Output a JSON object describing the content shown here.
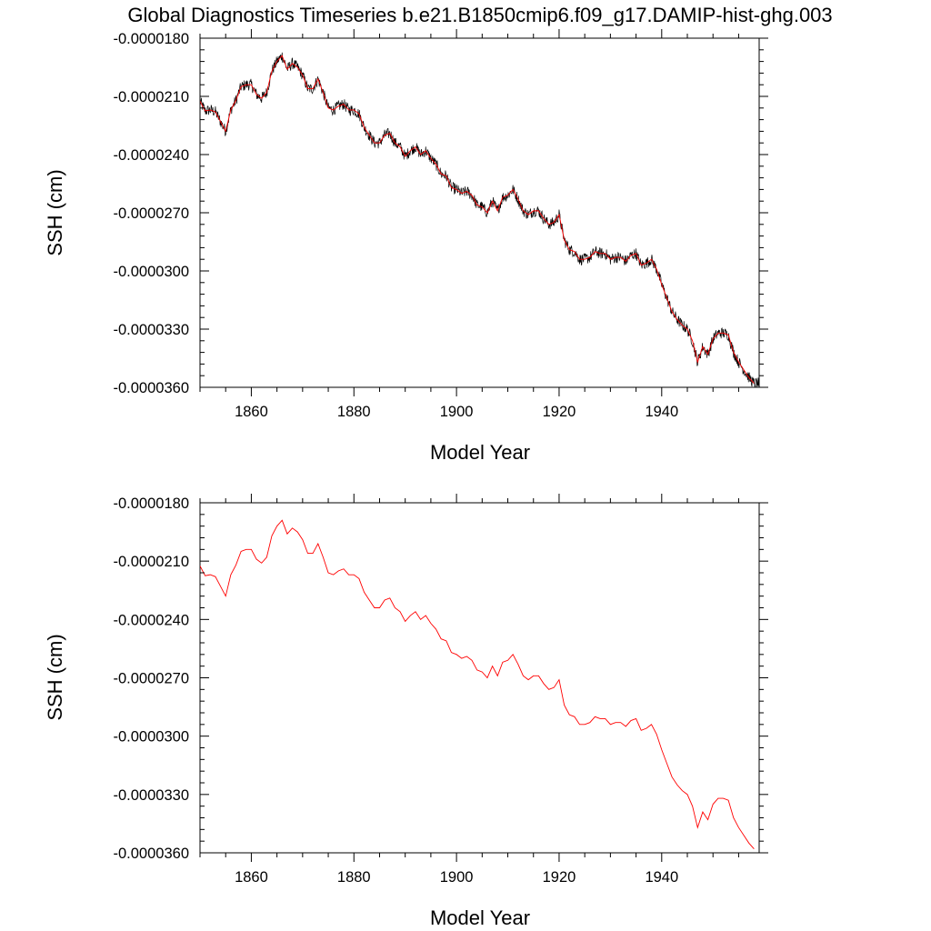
{
  "figure_title": "Global Diagnostics Timeseries b.e21.B1850cmip6.f09_g17.DAMIP-hist-ghg.003",
  "colors": {
    "monthly_line": "#000000",
    "annual_line": "#ff0000",
    "frame": "#000000"
  },
  "chart_data": [
    {
      "type": "line",
      "title": "",
      "xlabel": "Model Year",
      "ylabel": "SSH (cm)",
      "xlim": [
        1850,
        1959
      ],
      "ylim": [
        -3.6e-05,
        -1.8e-05
      ],
      "xticks": [
        1860,
        1880,
        1900,
        1920,
        1940
      ],
      "xtick_labels": [
        "1860",
        "1880",
        "1900",
        "1920",
        "1940"
      ],
      "yticks": [
        -1.8e-05,
        -2.1e-05,
        -2.4e-05,
        -2.7e-05,
        -3e-05,
        -3.3e-05,
        -3.6e-05
      ],
      "ytick_labels": [
        "-0.0000180",
        "-0.0000210",
        "-0.0000240",
        "-0.0000270",
        "-0.0000300",
        "-0.0000330",
        "-0.0000360"
      ],
      "grid": false,
      "series": [
        {
          "role": "monthly",
          "color": "#000000",
          "x": [],
          "y": []
        },
        {
          "role": "annual_mean",
          "color": "#ff0000",
          "x": [],
          "y": []
        }
      ]
    },
    {
      "type": "line",
      "title": "",
      "xlabel": "Model Year",
      "ylabel": "SSH (cm)",
      "xlim": [
        1850,
        1959
      ],
      "ylim": [
        -3.6e-05,
        -1.8e-05
      ],
      "xticks": [
        1860,
        1880,
        1900,
        1920,
        1940
      ],
      "xtick_labels": [
        "1860",
        "1880",
        "1900",
        "1920",
        "1940"
      ],
      "yticks": [
        -1.8e-05,
        -2.1e-05,
        -2.4e-05,
        -2.7e-05,
        -3e-05,
        -3.3e-05,
        -3.6e-05
      ],
      "ytick_labels": [
        "-0.0000180",
        "-0.0000210",
        "-0.0000240",
        "-0.0000270",
        "-0.0000300",
        "-0.0000330",
        "-0.0000360"
      ],
      "grid": false,
      "series": [
        {
          "role": "annual_mean",
          "color": "#ff0000",
          "x": [],
          "y": []
        }
      ]
    }
  ],
  "annual_mean": {
    "x": [
      1850,
      1851,
      1852,
      1853,
      1854,
      1855,
      1856,
      1857,
      1858,
      1859,
      1860,
      1861,
      1862,
      1863,
      1864,
      1865,
      1866,
      1867,
      1868,
      1869,
      1870,
      1871,
      1872,
      1873,
      1874,
      1875,
      1876,
      1877,
      1878,
      1879,
      1880,
      1881,
      1882,
      1883,
      1884,
      1885,
      1886,
      1887,
      1888,
      1889,
      1890,
      1891,
      1892,
      1893,
      1894,
      1895,
      1896,
      1897,
      1898,
      1899,
      1900,
      1901,
      1902,
      1903,
      1904,
      1905,
      1906,
      1907,
      1908,
      1909,
      1910,
      1911,
      1912,
      1913,
      1914,
      1915,
      1916,
      1917,
      1918,
      1919,
      1920,
      1921,
      1922,
      1923,
      1924,
      1925,
      1926,
      1927,
      1928,
      1929,
      1930,
      1931,
      1932,
      1933,
      1934,
      1935,
      1936,
      1937,
      1938,
      1939,
      1940,
      1941,
      1942,
      1943,
      1944,
      1945,
      1946,
      1947,
      1948,
      1949,
      1950,
      1951,
      1952,
      1953,
      1954,
      1955,
      1956,
      1957,
      1958
    ],
    "y": [
      -2.125e-05,
      -2.175e-05,
      -2.17e-05,
      -2.18e-05,
      -2.23e-05,
      -2.28e-05,
      -2.17e-05,
      -2.12e-05,
      -2.05e-05,
      -2.04e-05,
      -2.04e-05,
      -2.09e-05,
      -2.11e-05,
      -2.08e-05,
      -1.97e-05,
      -1.92e-05,
      -1.89e-05,
      -1.96e-05,
      -1.93e-05,
      -1.95e-05,
      -1.99e-05,
      -2.06e-05,
      -2.06e-05,
      -2.01e-05,
      -2.08e-05,
      -2.16e-05,
      -2.17e-05,
      -2.15e-05,
      -2.14e-05,
      -2.17e-05,
      -2.17e-05,
      -2.19e-05,
      -2.26e-05,
      -2.3e-05,
      -2.34e-05,
      -2.34e-05,
      -2.3e-05,
      -2.29e-05,
      -2.34e-05,
      -2.36e-05,
      -2.41e-05,
      -2.38e-05,
      -2.36e-05,
      -2.4e-05,
      -2.38e-05,
      -2.42e-05,
      -2.45e-05,
      -2.5e-05,
      -2.51e-05,
      -2.57e-05,
      -2.58e-05,
      -2.6e-05,
      -2.59e-05,
      -2.61e-05,
      -2.66e-05,
      -2.67e-05,
      -2.7e-05,
      -2.64e-05,
      -2.69e-05,
      -2.62e-05,
      -2.61e-05,
      -2.58e-05,
      -2.63e-05,
      -2.69e-05,
      -2.71e-05,
      -2.69e-05,
      -2.69e-05,
      -2.73e-05,
      -2.76e-05,
      -2.75e-05,
      -2.71e-05,
      -2.84e-05,
      -2.89e-05,
      -2.9e-05,
      -2.94e-05,
      -2.94e-05,
      -2.93e-05,
      -2.9e-05,
      -2.91e-05,
      -2.91e-05,
      -2.94e-05,
      -2.93e-05,
      -2.93e-05,
      -2.95e-05,
      -2.92e-05,
      -2.91e-05,
      -2.97e-05,
      -2.96e-05,
      -2.94e-05,
      -2.99e-05,
      -3.07e-05,
      -3.14e-05,
      -3.21e-05,
      -3.25e-05,
      -3.28e-05,
      -3.3e-05,
      -3.36e-05,
      -3.47e-05,
      -3.39e-05,
      -3.43e-05,
      -3.35e-05,
      -3.32e-05,
      -3.32e-05,
      -3.33e-05,
      -3.42e-05,
      -3.47e-05,
      -3.51e-05,
      -3.55e-05,
      -3.58e-05
    ]
  }
}
